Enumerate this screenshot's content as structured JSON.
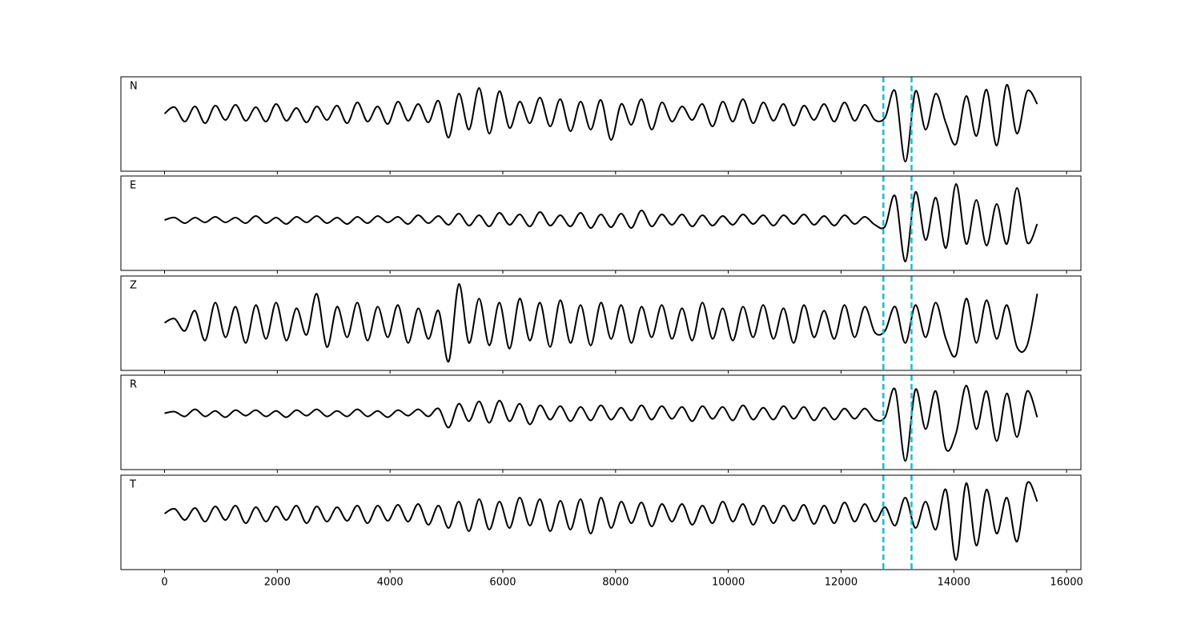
{
  "chart_data": [
    {
      "type": "line",
      "series": [
        {
          "name": "N",
          "color": "#000000",
          "values": [
            0,
            8,
            -10,
            9,
            -12,
            10,
            -8,
            11,
            -9,
            8,
            -10,
            12,
            -9,
            7,
            -11,
            9,
            -8,
            10,
            -12,
            14,
            -10,
            9,
            -13,
            15,
            -9,
            12,
            -11,
            16,
            -30,
            25,
            -20,
            32,
            -25,
            28,
            -18,
            15,
            -12,
            20,
            -16,
            18,
            -22,
            15,
            -20,
            17,
            -33,
            12,
            -14,
            18,
            -20,
            14,
            -10,
            9,
            -8,
            12,
            -16,
            15,
            -10,
            18,
            -12,
            14,
            -9,
            12,
            -15,
            10,
            -8,
            12,
            -10,
            14,
            -9,
            11,
            -8,
            -5,
            28,
            -60,
            28,
            -20,
            25,
            -12,
            -38,
            22,
            -28,
            30,
            -40,
            36,
            -25,
            28,
            12
          ]
        }
      ],
      "x": [
        0,
        180,
        360,
        540,
        720,
        900,
        1080,
        1260,
        1440,
        1620,
        1800,
        1980,
        2160,
        2340,
        2520,
        2700,
        2880,
        3060,
        3240,
        3420,
        3600,
        3780,
        3960,
        4140,
        4320,
        4500,
        4680,
        4860,
        5040,
        5220,
        5400,
        5580,
        5760,
        5940,
        6120,
        6300,
        6480,
        6660,
        6840,
        7020,
        7200,
        7380,
        7560,
        7740,
        7920,
        8100,
        8280,
        8460,
        8640,
        8820,
        9000,
        9180,
        9360,
        9540,
        9720,
        9900,
        10080,
        10260,
        10440,
        10620,
        10800,
        10980,
        11160,
        11340,
        11520,
        11700,
        11880,
        12060,
        12240,
        12420,
        12600,
        12780,
        12960,
        13140,
        13320,
        13500,
        13680,
        13860,
        14040,
        14220,
        14400,
        14580,
        14760,
        14940,
        15120,
        15300,
        15480
      ],
      "xlim": [
        -774,
        16254
      ],
      "ylim": [
        -72,
        46
      ],
      "xticks": [
        0,
        2000,
        4000,
        6000,
        8000,
        10000,
        12000,
        14000,
        16000
      ],
      "xticklabels": false,
      "picks": [
        12750,
        13250
      ],
      "pick_color": "#17becf"
    },
    {
      "type": "line",
      "series": [
        {
          "name": "E",
          "color": "#000000",
          "values": [
            0,
            3,
            -4,
            3,
            -3,
            4,
            -3,
            3,
            -4,
            5,
            -4,
            3,
            -5,
            4,
            -3,
            5,
            -4,
            3,
            -5,
            4,
            -4,
            5,
            -3,
            4,
            -5,
            6,
            -4,
            5,
            -6,
            8,
            -7,
            6,
            -8,
            9,
            -6,
            7,
            -8,
            10,
            -7,
            6,
            -8,
            9,
            -10,
            7,
            -9,
            8,
            -10,
            12,
            -8,
            7,
            -6,
            7,
            -8,
            6,
            -7,
            5,
            -6,
            7,
            -5,
            6,
            -7,
            6,
            -5,
            7,
            -6,
            5,
            -7,
            6,
            -5,
            4,
            -6,
            -8,
            30,
            -52,
            35,
            -25,
            28,
            -35,
            45,
            -30,
            25,
            -32,
            20,
            -30,
            40,
            -28,
            -5
          ]
        }
      ],
      "x": [
        0,
        180,
        360,
        540,
        720,
        900,
        1080,
        1260,
        1440,
        1620,
        1800,
        1980,
        2160,
        2340,
        2520,
        2700,
        2880,
        3060,
        3240,
        3420,
        3600,
        3780,
        3960,
        4140,
        4320,
        4500,
        4680,
        4860,
        5040,
        5220,
        5400,
        5580,
        5760,
        5940,
        6120,
        6300,
        6480,
        6660,
        6840,
        7020,
        7200,
        7380,
        7560,
        7740,
        7920,
        8100,
        8280,
        8460,
        8640,
        8820,
        9000,
        9180,
        9360,
        9540,
        9720,
        9900,
        10080,
        10260,
        10440,
        10620,
        10800,
        10980,
        11160,
        11340,
        11520,
        11700,
        11880,
        12060,
        12240,
        12420,
        12600,
        12780,
        12960,
        13140,
        13320,
        13500,
        13680,
        13860,
        14040,
        14220,
        14400,
        14580,
        14760,
        14940,
        15120,
        15300,
        15480
      ],
      "xlim": [
        -774,
        16254
      ],
      "ylim": [
        -63,
        55
      ],
      "xticks": [
        0,
        2000,
        4000,
        6000,
        8000,
        10000,
        12000,
        14000,
        16000
      ],
      "xticklabels": false,
      "picks": [
        12750,
        13250
      ],
      "pick_color": "#17becf"
    },
    {
      "type": "line",
      "series": [
        {
          "name": "Z",
          "color": "#000000",
          "values": [
            0,
            5,
            -10,
            15,
            -22,
            25,
            -18,
            20,
            -25,
            22,
            -20,
            25,
            -22,
            18,
            -15,
            36,
            -30,
            20,
            -18,
            25,
            -22,
            20,
            -18,
            22,
            -25,
            18,
            -20,
            15,
            -48,
            48,
            -25,
            30,
            -28,
            25,
            -32,
            30,
            -22,
            25,
            -30,
            28,
            -25,
            22,
            -28,
            25,
            -20,
            22,
            -25,
            20,
            -18,
            22,
            -20,
            18,
            -22,
            25,
            -20,
            18,
            -22,
            20,
            -18,
            22,
            -20,
            18,
            -25,
            22,
            -18,
            15,
            -20,
            22,
            -18,
            20,
            -12,
            -10,
            20,
            -25,
            22,
            -18,
            25,
            -20,
            -40,
            30,
            -25,
            28,
            -20,
            22,
            -30,
            -28,
            36
          ]
        }
      ],
      "x": [
        0,
        180,
        360,
        540,
        720,
        900,
        1080,
        1260,
        1440,
        1620,
        1800,
        1980,
        2160,
        2340,
        2520,
        2700,
        2880,
        3060,
        3240,
        3420,
        3600,
        3780,
        3960,
        4140,
        4320,
        4500,
        4680,
        4860,
        5040,
        5220,
        5400,
        5580,
        5760,
        5940,
        6120,
        6300,
        6480,
        6660,
        6840,
        7020,
        7200,
        7380,
        7560,
        7740,
        7920,
        8100,
        8280,
        8460,
        8640,
        8820,
        9000,
        9180,
        9360,
        9540,
        9720,
        9900,
        10080,
        10260,
        10440,
        10620,
        10800,
        10980,
        11160,
        11340,
        11520,
        11700,
        11880,
        12060,
        12240,
        12420,
        12600,
        12780,
        12960,
        13140,
        13320,
        13500,
        13680,
        13860,
        14040,
        14220,
        14400,
        14580,
        14760,
        14940,
        15120,
        15300,
        15480
      ],
      "xlim": [
        -774,
        16254
      ],
      "ylim": [
        -59,
        58
      ],
      "xticks": [
        0,
        2000,
        4000,
        6000,
        8000,
        10000,
        12000,
        14000,
        16000
      ],
      "xticklabels": false,
      "picks": [
        12750,
        13250
      ],
      "pick_color": "#17becf"
    },
    {
      "type": "line",
      "series": [
        {
          "name": "R",
          "color": "#000000",
          "values": [
            0,
            2,
            -4,
            5,
            -4,
            3,
            -5,
            4,
            -3,
            4,
            -4,
            3,
            -5,
            4,
            -3,
            5,
            -4,
            3,
            -4,
            5,
            -4,
            3,
            -5,
            4,
            -3,
            5,
            -4,
            6,
            -18,
            12,
            -10,
            15,
            -12,
            16,
            -10,
            12,
            -14,
            10,
            -8,
            9,
            -10,
            8,
            -9,
            10,
            -8,
            7,
            -9,
            10,
            -8,
            9,
            -7,
            8,
            -10,
            9,
            -7,
            8,
            -9,
            10,
            -8,
            7,
            -8,
            9,
            -7,
            8,
            -9,
            7,
            -8,
            6,
            -7,
            6,
            -8,
            -5,
            30,
            -60,
            30,
            -20,
            28,
            -45,
            -25,
            35,
            -20,
            28,
            -35,
            25,
            -30,
            28,
            -5
          ]
        }
      ],
      "x": [
        0,
        180,
        360,
        540,
        720,
        900,
        1080,
        1260,
        1440,
        1620,
        1800,
        1980,
        2160,
        2340,
        2520,
        2700,
        2880,
        3060,
        3240,
        3420,
        3600,
        3780,
        3960,
        4140,
        4320,
        4500,
        4680,
        4860,
        5040,
        5220,
        5400,
        5580,
        5760,
        5940,
        6120,
        6300,
        6480,
        6660,
        6840,
        7020,
        7200,
        7380,
        7560,
        7740,
        7920,
        8100,
        8280,
        8460,
        8640,
        8820,
        9000,
        9180,
        9360,
        9540,
        9720,
        9900,
        10080,
        10260,
        10440,
        10620,
        10800,
        10980,
        11160,
        11340,
        11520,
        11700,
        11880,
        12060,
        12240,
        12420,
        12600,
        12780,
        12960,
        13140,
        13320,
        13500,
        13680,
        13860,
        14040,
        14220,
        14400,
        14580,
        14760,
        14940,
        15120,
        15300,
        15480
      ],
      "xlim": [
        -774,
        16254
      ],
      "ylim": [
        -71,
        48
      ],
      "xticks": [
        0,
        2000,
        4000,
        6000,
        8000,
        10000,
        12000,
        14000,
        16000
      ],
      "xticklabels": false,
      "picks": [
        12750,
        13250
      ],
      "pick_color": "#17becf"
    },
    {
      "type": "line",
      "series": [
        {
          "name": "T",
          "color": "#000000",
          "values": [
            0,
            6,
            -8,
            7,
            -10,
            9,
            -8,
            10,
            -12,
            8,
            -10,
            9,
            -8,
            10,
            -12,
            9,
            -10,
            8,
            -9,
            10,
            -12,
            10,
            -9,
            11,
            -10,
            12,
            -14,
            10,
            -18,
            15,
            -22,
            18,
            -20,
            15,
            -18,
            20,
            -15,
            18,
            -22,
            16,
            -20,
            18,
            -25,
            20,
            -18,
            15,
            -12,
            14,
            -16,
            12,
            -10,
            12,
            -14,
            10,
            -12,
            15,
            -10,
            12,
            -14,
            10,
            -12,
            10,
            -9,
            11,
            -13,
            10,
            -12,
            14,
            -10,
            12,
            -10,
            8,
            -15,
            20,
            -18,
            15,
            -20,
            30,
            -58,
            38,
            -40,
            30,
            -25,
            20,
            -35,
            38,
            15
          ]
        }
      ],
      "x": [
        0,
        180,
        360,
        540,
        720,
        900,
        1080,
        1260,
        1440,
        1620,
        1800,
        1980,
        2160,
        2340,
        2520,
        2700,
        2880,
        3060,
        3240,
        3420,
        3600,
        3780,
        3960,
        4140,
        4320,
        4500,
        4680,
        4860,
        5040,
        5220,
        5400,
        5580,
        5760,
        5940,
        6120,
        6300,
        6480,
        6660,
        6840,
        7020,
        7200,
        7380,
        7560,
        7740,
        7920,
        8100,
        8280,
        8460,
        8640,
        8820,
        9000,
        9180,
        9360,
        9540,
        9720,
        9900,
        10080,
        10260,
        10440,
        10620,
        10800,
        10980,
        11160,
        11340,
        11520,
        11700,
        11880,
        12060,
        12240,
        12420,
        12600,
        12780,
        12960,
        13140,
        13320,
        13500,
        13680,
        13860,
        14040,
        14220,
        14400,
        14580,
        14760,
        14940,
        15120,
        15300,
        15480
      ],
      "xlim": [
        -774,
        16254
      ],
      "ylim": [
        -70,
        48
      ],
      "xticks": [
        0,
        2000,
        4000,
        6000,
        8000,
        10000,
        12000,
        14000,
        16000
      ],
      "xticklabels": true,
      "picks": [
        12750,
        13250
      ],
      "pick_color": "#17becf"
    }
  ]
}
